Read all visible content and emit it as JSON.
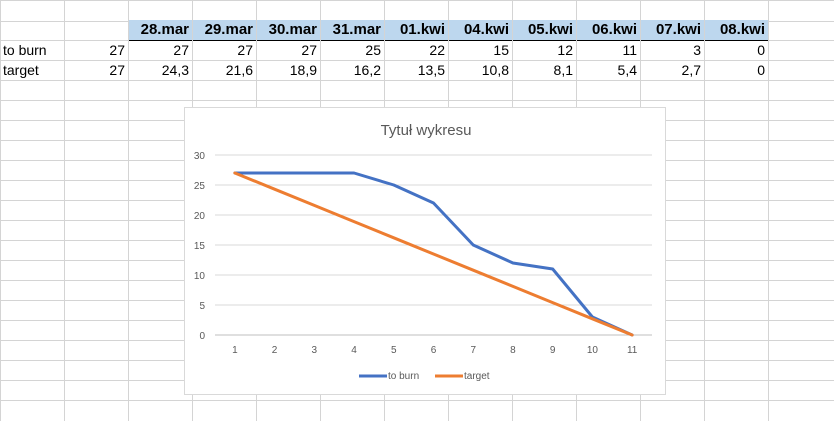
{
  "sheet": {
    "header_dates": [
      "28.mar",
      "29.mar",
      "30.mar",
      "31.mar",
      "01.kwi",
      "04.kwi",
      "05.kwi",
      "06.kwi",
      "07.kwi",
      "08.kwi"
    ],
    "rows": [
      {
        "label": "to burn",
        "first": "27",
        "values": [
          "27",
          "27",
          "27",
          "25",
          "22",
          "15",
          "12",
          "11",
          "3",
          "0"
        ]
      },
      {
        "label": "target",
        "first": "27",
        "values": [
          "24,3",
          "21,6",
          "18,9",
          "16,2",
          "13,5",
          "10,8",
          "8,1",
          "5,4",
          "2,7",
          "0"
        ]
      }
    ]
  },
  "chart_data": {
    "type": "line",
    "title": "Tytuł wykresu",
    "x": [
      1,
      2,
      3,
      4,
      5,
      6,
      7,
      8,
      9,
      10,
      11
    ],
    "ylim": [
      0,
      30
    ],
    "yticks": [
      0,
      5,
      10,
      15,
      20,
      25,
      30
    ],
    "grid": true,
    "legend": "bottom",
    "series": [
      {
        "name": "to burn",
        "color": "#4472c4",
        "values": [
          27,
          27,
          27,
          27,
          25,
          22,
          15,
          12,
          11,
          3,
          0
        ]
      },
      {
        "name": "target",
        "color": "#ed7d31",
        "values": [
          27,
          24.3,
          21.6,
          18.9,
          16.2,
          13.5,
          10.8,
          8.1,
          5.4,
          2.7,
          0
        ]
      }
    ]
  }
}
